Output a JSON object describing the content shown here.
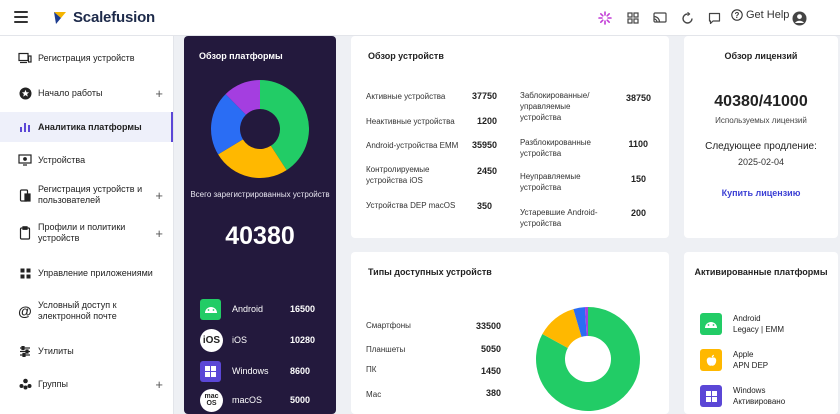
{
  "app": {
    "name": "Scalefusion"
  },
  "topbar": {
    "help_label": "Get Help"
  },
  "sidebar": {
    "items": [
      {
        "label": "Регистрация устройств",
        "icon": "devices-icon",
        "plus": ""
      },
      {
        "label": "Начало работы",
        "icon": "star-icon",
        "plus": "+"
      },
      {
        "label": "Аналитика платформы",
        "icon": "analytics-icon",
        "plus": ""
      },
      {
        "label": "Устройства",
        "icon": "monitor-icon",
        "plus": ""
      },
      {
        "label": "Регистрация устройств и пользователей",
        "icon": "enroll-icon",
        "plus": "+"
      },
      {
        "label": "Профили и политики устройств",
        "icon": "clipboard-icon",
        "plus": "+"
      },
      {
        "label": "Управление приложениями",
        "icon": "apps-grid-icon",
        "plus": ""
      },
      {
        "label": "Условный доступ к электронной почте",
        "icon": "at-sign-icon",
        "plus": ""
      },
      {
        "label": "Утилиты",
        "icon": "sliders-icon",
        "plus": ""
      },
      {
        "label": "Группы",
        "icon": "groups-icon",
        "plus": "+"
      }
    ]
  },
  "platform": {
    "title": "Обзор платформы",
    "total_label": "Всего зарегистрированных устройств",
    "total": "40380",
    "rows": [
      {
        "name": "Android",
        "value": "16500"
      },
      {
        "name": "iOS",
        "value": "10280"
      },
      {
        "name": "Windows",
        "value": "8600"
      },
      {
        "name": "macOS",
        "value": "5000"
      }
    ],
    "ios_badge": "iOS",
    "mac_badge_top": "mac",
    "mac_badge_bottom": "OS"
  },
  "overview": {
    "title": "Обзор устройств",
    "left": [
      {
        "label": "Активные устройства",
        "value": "37750"
      },
      {
        "label": "Неактивные устройства",
        "value": "1200"
      },
      {
        "label": "Android-устройства EMM",
        "value": "35950"
      },
      {
        "label": "Контролируемые устройства iOS",
        "value": "2450"
      },
      {
        "label": "Устройства DEP macOS",
        "value": "350"
      }
    ],
    "right": [
      {
        "label": "Заблокированные/ управляемые устройства",
        "value": "38750"
      },
      {
        "label": "Разблокированные устройства",
        "value": "1100"
      },
      {
        "label": "Неуправляемые устройства",
        "value": "150"
      },
      {
        "label": "Устаревшие Android-устройства",
        "value": "200"
      }
    ]
  },
  "license": {
    "title": "Обзор лицензий",
    "count": "40380/41000",
    "used_label": "Используемых лицензий",
    "renewal_label": "Следующее продление:",
    "renewal_date": "2025-02-04",
    "buy_label": "Купить лицензию"
  },
  "types": {
    "title": "Типы доступных устройств",
    "rows": [
      {
        "label": "Смартфоны",
        "value": "33500"
      },
      {
        "label": "Планшеты",
        "value": "5050"
      },
      {
        "label": "ПК",
        "value": "1450"
      },
      {
        "label": "Мас",
        "value": "380"
      }
    ]
  },
  "activated": {
    "title": "Активированные платформы",
    "items": [
      {
        "line1": "Android",
        "line2": "Legacy | EMM",
        "icon": "android-icon"
      },
      {
        "line1": "Apple",
        "line2": "APN DEP",
        "icon": "apple-icon"
      },
      {
        "line1": "Windows",
        "line2": "Активировано",
        "icon": "windows-icon"
      }
    ]
  },
  "colors": {
    "android": "#22cc66",
    "ios": "#ffb800",
    "windows": "#2a6df4",
    "macos": "#a43ee0",
    "sidebar_dark": "#23193d",
    "accent": "#5b47d6",
    "link": "#3b3fd4"
  },
  "chart_data": [
    {
      "type": "pie",
      "title": "",
      "categories": [
        "Android",
        "iOS",
        "Windows",
        "macOS"
      ],
      "values": [
        16500,
        10280,
        8600,
        5000
      ]
    },
    {
      "type": "pie",
      "title": "",
      "categories": [
        "Смартфоны",
        "Планшеты",
        "ПК",
        "Мас"
      ],
      "values": [
        33500,
        5050,
        1450,
        380
      ]
    }
  ]
}
